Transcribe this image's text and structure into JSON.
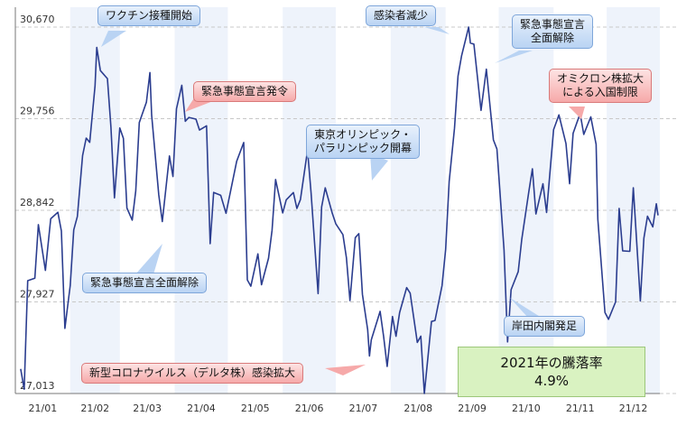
{
  "chart_data": {
    "type": "line",
    "x_start": "2021/01",
    "x_end": "2021/12",
    "ylim": [
      27013,
      30670
    ],
    "yticks": [
      "30,670",
      "29,756",
      "28,842",
      "27,927",
      "27,013"
    ],
    "xticks": [
      "21/01",
      "21/02",
      "21/03",
      "21/04",
      "21/05",
      "21/06",
      "21/07",
      "21/08",
      "21/09",
      "21/10",
      "21/11",
      "21/12"
    ],
    "grid": true,
    "series": [
      {
        "color": "#2b3d8f",
        "points": [
          [
            "2021/01/04",
            27258
          ],
          [
            "2021/01/06",
            27056
          ],
          [
            "2021/01/08",
            28139
          ],
          [
            "2021/01/12",
            28164
          ],
          [
            "2021/01/14",
            28698
          ],
          [
            "2021/01/18",
            28242
          ],
          [
            "2021/01/21",
            28757
          ],
          [
            "2021/01/25",
            28822
          ],
          [
            "2021/01/27",
            28635
          ],
          [
            "2021/01/29",
            27663
          ],
          [
            "2021/02/01",
            28091
          ],
          [
            "2021/02/03",
            28646
          ],
          [
            "2021/02/05",
            28779
          ],
          [
            "2021/02/08",
            29388
          ],
          [
            "2021/02/10",
            29562
          ],
          [
            "2021/02/12",
            29520
          ],
          [
            "2021/02/15",
            30084
          ],
          [
            "2021/02/16",
            30467
          ],
          [
            "2021/02/18",
            30236
          ],
          [
            "2021/02/22",
            30156
          ],
          [
            "2021/02/24",
            29671
          ],
          [
            "2021/02/26",
            28966
          ],
          [
            "2021/03/01",
            29663
          ],
          [
            "2021/03/03",
            29559
          ],
          [
            "2021/03/05",
            28864
          ],
          [
            "2021/03/08",
            28743
          ],
          [
            "2021/03/10",
            29036
          ],
          [
            "2021/03/12",
            29717
          ],
          [
            "2021/03/16",
            29921
          ],
          [
            "2021/03/18",
            30216
          ],
          [
            "2021/03/19",
            29792
          ],
          [
            "2021/03/23",
            28995
          ],
          [
            "2021/03/25",
            28729
          ],
          [
            "2021/03/29",
            29384
          ],
          [
            "2021/03/31",
            29178
          ],
          [
            "2021/04/02",
            29854
          ],
          [
            "2021/04/05",
            30089
          ],
          [
            "2021/04/07",
            29730
          ],
          [
            "2021/04/09",
            29768
          ],
          [
            "2021/04/13",
            29751
          ],
          [
            "2021/04/15",
            29642
          ],
          [
            "2021/04/19",
            29685
          ],
          [
            "2021/04/21",
            28508
          ],
          [
            "2021/04/23",
            29020
          ],
          [
            "2021/04/27",
            28991
          ],
          [
            "2021/04/30",
            28812
          ],
          [
            "2021/05/06",
            29331
          ],
          [
            "2021/05/10",
            29518
          ],
          [
            "2021/05/12",
            28147
          ],
          [
            "2021/05/14",
            28084
          ],
          [
            "2021/05/18",
            28406
          ],
          [
            "2021/05/20",
            28098
          ],
          [
            "2021/05/24",
            28364
          ],
          [
            "2021/05/26",
            28642
          ],
          [
            "2021/05/28",
            29149
          ],
          [
            "2021/06/01",
            28815
          ],
          [
            "2021/06/03",
            28946
          ],
          [
            "2021/06/07",
            29019
          ],
          [
            "2021/06/09",
            28860
          ],
          [
            "2021/06/11",
            28948
          ],
          [
            "2021/06/15",
            29441
          ],
          [
            "2021/06/17",
            29018
          ],
          [
            "2021/06/21",
            28010
          ],
          [
            "2021/06/23",
            28875
          ],
          [
            "2021/06/25",
            29066
          ],
          [
            "2021/06/29",
            28812
          ],
          [
            "2021/07/01",
            28707
          ],
          [
            "2021/07/05",
            28598
          ],
          [
            "2021/07/07",
            28366
          ],
          [
            "2021/07/09",
            27940
          ],
          [
            "2021/07/12",
            28569
          ],
          [
            "2021/07/14",
            28608
          ],
          [
            "2021/07/16",
            28003
          ],
          [
            "2021/07/19",
            27652
          ],
          [
            "2021/07/20",
            27388
          ],
          [
            "2021/07/21",
            27548
          ],
          [
            "2021/07/26",
            27833
          ],
          [
            "2021/07/28",
            27581
          ],
          [
            "2021/07/30",
            27283
          ],
          [
            "2021/08/02",
            27781
          ],
          [
            "2021/08/04",
            27584
          ],
          [
            "2021/08/06",
            27820
          ],
          [
            "2021/08/10",
            28070
          ],
          [
            "2021/08/12",
            28015
          ],
          [
            "2021/08/16",
            27523
          ],
          [
            "2021/08/18",
            27585
          ],
          [
            "2021/08/20",
            27013
          ],
          [
            "2021/08/24",
            27732
          ],
          [
            "2021/08/26",
            27742
          ],
          [
            "2021/08/30",
            28089
          ],
          [
            "2021/09/01",
            28451
          ],
          [
            "2021/09/03",
            29128
          ],
          [
            "2021/09/06",
            29660
          ],
          [
            "2021/09/08",
            30181
          ],
          [
            "2021/09/10",
            30381
          ],
          [
            "2021/09/14",
            30670
          ],
          [
            "2021/09/15",
            30511
          ],
          [
            "2021/09/17",
            30500
          ],
          [
            "2021/09/21",
            29839
          ],
          [
            "2021/09/24",
            30249
          ],
          [
            "2021/09/28",
            29544
          ],
          [
            "2021/09/30",
            29453
          ],
          [
            "2021/10/04",
            28444
          ],
          [
            "2021/10/06",
            27528
          ],
          [
            "2021/10/08",
            28049
          ],
          [
            "2021/10/12",
            28230
          ],
          [
            "2021/10/14",
            28550
          ],
          [
            "2021/10/18",
            29025
          ],
          [
            "2021/10/20",
            29255
          ],
          [
            "2021/10/22",
            28805
          ],
          [
            "2021/10/26",
            29106
          ],
          [
            "2021/10/28",
            28820
          ],
          [
            "2021/11/01",
            29647
          ],
          [
            "2021/11/04",
            29794
          ],
          [
            "2021/11/08",
            29507
          ],
          [
            "2021/11/10",
            29106
          ],
          [
            "2021/11/12",
            29610
          ],
          [
            "2021/11/16",
            29808
          ],
          [
            "2021/11/18",
            29599
          ],
          [
            "2021/11/22",
            29774
          ],
          [
            "2021/11/25",
            29499
          ],
          [
            "2021/11/26",
            28751
          ],
          [
            "2021/11/30",
            27821
          ],
          [
            "2021/12/02",
            27753
          ],
          [
            "2021/12/06",
            27927
          ],
          [
            "2021/12/08",
            28860
          ],
          [
            "2021/12/10",
            28437
          ],
          [
            "2021/12/14",
            28432
          ],
          [
            "2021/12/16",
            29066
          ],
          [
            "2021/12/20",
            27937
          ],
          [
            "2021/12/22",
            28562
          ],
          [
            "2021/12/24",
            28782
          ],
          [
            "2021/12/27",
            28676
          ],
          [
            "2021/12/29",
            28906
          ],
          [
            "2021/12/30",
            28791
          ]
        ]
      }
    ]
  },
  "annotations": {
    "vaccine": "ワクチン接種開始",
    "infections_down": "感染者減少",
    "emergency_lifted_sep_1": "緊急事態宣言",
    "emergency_lifted_sep_2": "全面解除",
    "emergency_declared": "緊急事態宣言発令",
    "omicron_1": "オミクロン株拡大",
    "omicron_2": "による入国制限",
    "olympics_1": "東京オリンピック・",
    "olympics_2": "パラリンピック開幕",
    "emergency_lifted_mar": "緊急事態宣言全面解除",
    "kishida": "岸田内閣発足",
    "delta": "新型コロナウイルス（デルタ株）感染拡大"
  },
  "summary_box": {
    "line1": "2021年の騰落率",
    "line2": "4.9%"
  },
  "colors": {
    "line": "#2b3d8f",
    "band": "#eef3fb",
    "grid": "#c8c8c8",
    "callout_blue": "#b9d3f3",
    "callout_red": "#f6a9a9",
    "summary_fill": "#d9f2c1"
  }
}
